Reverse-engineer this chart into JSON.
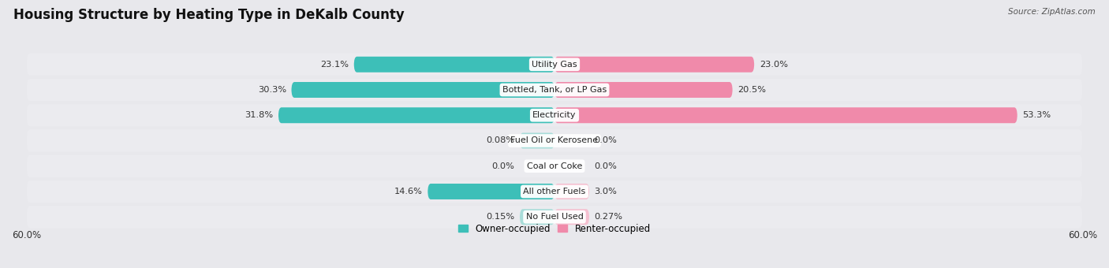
{
  "title": "Housing Structure by Heating Type in DeKalb County",
  "source": "Source: ZipAtlas.com",
  "categories": [
    "Utility Gas",
    "Bottled, Tank, or LP Gas",
    "Electricity",
    "Fuel Oil or Kerosene",
    "Coal or Coke",
    "All other Fuels",
    "No Fuel Used"
  ],
  "owner_values": [
    23.1,
    30.3,
    31.8,
    0.08,
    0.0,
    14.6,
    0.15
  ],
  "renter_values": [
    23.0,
    20.5,
    53.3,
    0.0,
    0.0,
    3.0,
    0.27
  ],
  "owner_color": "#3DBFB8",
  "owner_color_light": "#A8DDD9",
  "renter_color": "#F08AAA",
  "renter_color_light": "#F5C0D0",
  "owner_label": "Owner-occupied",
  "renter_label": "Renter-occupied",
  "axis_max": 60.0,
  "axis_label_left": "60.0%",
  "axis_label_right": "60.0%",
  "background_color": "#e8e8ec",
  "row_bg_color": "#ebebef",
  "title_fontsize": 12,
  "bar_height": 0.62,
  "min_bar_display": 4.0
}
